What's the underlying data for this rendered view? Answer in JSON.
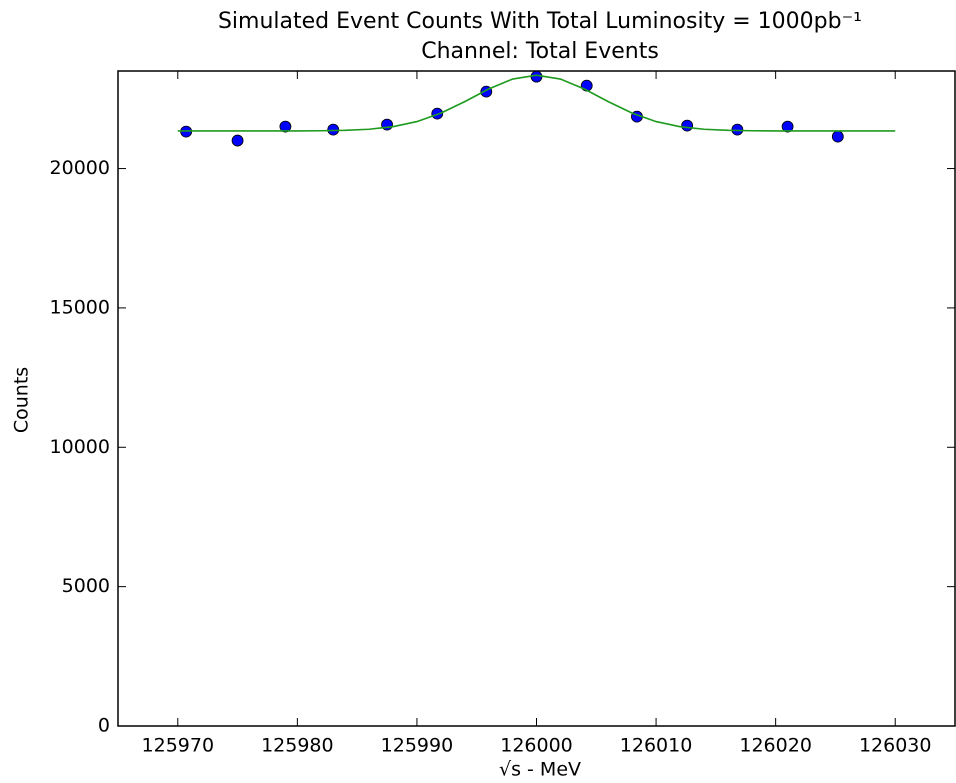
{
  "chart_data": {
    "type": "scatter",
    "title": [
      "Simulated Event Counts With Total Luminosity = 1000pb⁻¹",
      "Channel: Total Events"
    ],
    "x_label": "√s - MeV",
    "y_label": "Counts",
    "xlim": [
      125965,
      126035
    ],
    "ylim": [
      0,
      23500
    ],
    "xticks": [
      125970,
      125980,
      125990,
      126000,
      126010,
      126020,
      126030
    ],
    "yticks": [
      0,
      5000,
      10000,
      15000,
      20000
    ],
    "grid": false,
    "series": [
      {
        "style": "marker",
        "color": "#0000ff",
        "x": [
          125970.7,
          125975,
          125979,
          125983,
          125987.5,
          125991.7,
          125995.8,
          126000,
          126004.2,
          126008.4,
          126012.6,
          126016.8,
          126021,
          126025.2
        ],
        "values": [
          21326,
          21004,
          21505,
          21398,
          21577,
          21971,
          22760,
          23297,
          22975,
          21864,
          21541,
          21398,
          21505,
          21147
        ]
      },
      {
        "style": "line",
        "color": "#1e9a1e",
        "x": [
          125970,
          125972,
          125974,
          125976,
          125978,
          125980,
          125982,
          125984,
          125986,
          125988,
          125990,
          125992,
          125994,
          125996,
          125998,
          126000,
          126002,
          126004,
          126006,
          126008,
          126010,
          126012,
          126014,
          126016,
          126018,
          126020,
          126022,
          126024,
          126026,
          126028,
          126030
        ],
        "values": [
          21350,
          21350,
          21350,
          21350,
          21351,
          21351,
          21356,
          21371,
          21410,
          21503,
          21685,
          21988,
          22402,
          22853,
          23212,
          23350,
          23212,
          22853,
          22402,
          21988,
          21685,
          21503,
          21410,
          21371,
          21356,
          21351,
          21351,
          21350,
          21350,
          21350,
          21350
        ]
      }
    ]
  }
}
